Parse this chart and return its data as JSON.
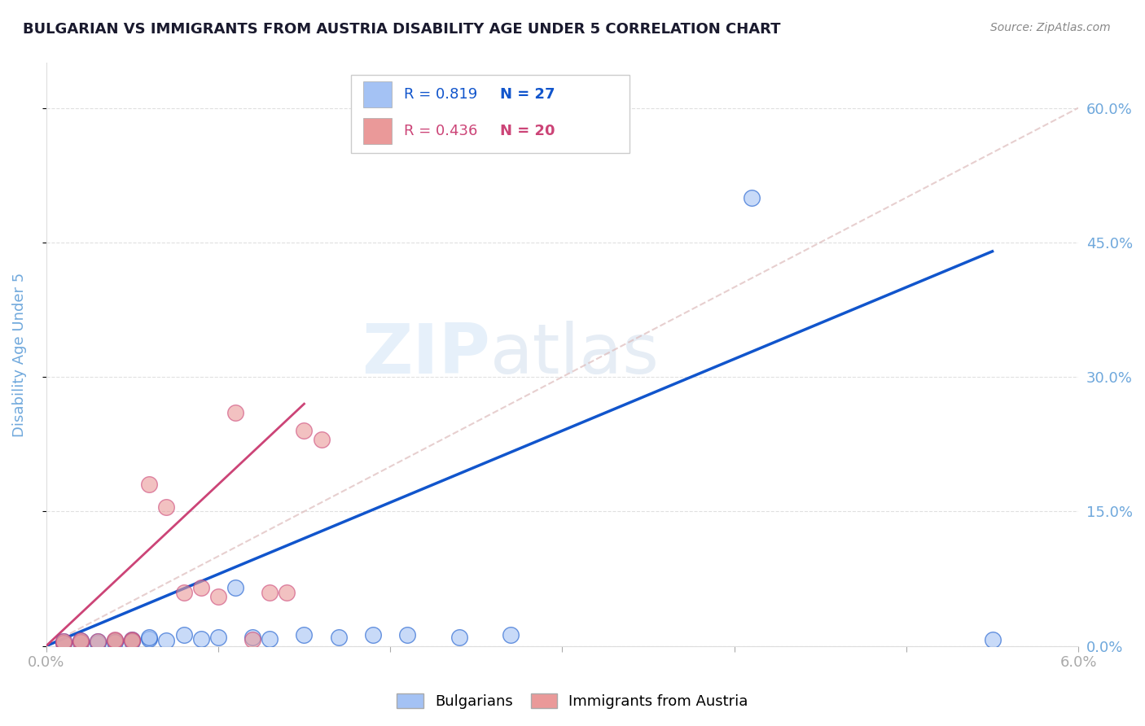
{
  "title": "BULGARIAN VS IMMIGRANTS FROM AUSTRIA DISABILITY AGE UNDER 5 CORRELATION CHART",
  "source": "Source: ZipAtlas.com",
  "ylabel": "Disability Age Under 5",
  "watermark": "ZIPatlas",
  "xlim": [
    0.0,
    0.06
  ],
  "ylim": [
    0.0,
    0.65
  ],
  "xticks": [
    0.0,
    0.01,
    0.02,
    0.03,
    0.04,
    0.05,
    0.06
  ],
  "xtick_labels": [
    "0.0%",
    "",
    "",
    "",
    "",
    "",
    "6.0%"
  ],
  "ytick_labels_right": [
    "0.0%",
    "15.0%",
    "30.0%",
    "45.0%",
    "60.0%"
  ],
  "yticks_right": [
    0.0,
    0.15,
    0.3,
    0.45,
    0.6
  ],
  "legend_r_blue": "0.819",
  "legend_n_blue": "27",
  "legend_r_pink": "0.436",
  "legend_n_pink": "20",
  "blue_color": "#a4c2f4",
  "pink_color": "#ea9999",
  "blue_line_color": "#1155cc",
  "pink_line_color": "#cc4477",
  "axis_color": "#6fa8dc",
  "title_color": "#1a1a2e",
  "grid_color": "#cccccc",
  "blue_scatter_x": [
    0.001,
    0.001,
    0.002,
    0.002,
    0.003,
    0.003,
    0.004,
    0.004,
    0.005,
    0.005,
    0.006,
    0.006,
    0.007,
    0.008,
    0.009,
    0.01,
    0.011,
    0.012,
    0.013,
    0.015,
    0.017,
    0.019,
    0.021,
    0.024,
    0.027,
    0.041,
    0.055
  ],
  "blue_scatter_y": [
    0.003,
    0.005,
    0.004,
    0.006,
    0.003,
    0.005,
    0.006,
    0.004,
    0.007,
    0.005,
    0.008,
    0.01,
    0.006,
    0.012,
    0.008,
    0.01,
    0.065,
    0.01,
    0.008,
    0.012,
    0.01,
    0.012,
    0.012,
    0.01,
    0.012,
    0.5,
    0.007
  ],
  "pink_scatter_x": [
    0.001,
    0.001,
    0.002,
    0.002,
    0.003,
    0.004,
    0.004,
    0.005,
    0.005,
    0.006,
    0.007,
    0.008,
    0.009,
    0.01,
    0.011,
    0.012,
    0.013,
    0.014,
    0.015,
    0.016
  ],
  "pink_scatter_y": [
    0.003,
    0.005,
    0.004,
    0.006,
    0.005,
    0.006,
    0.007,
    0.007,
    0.006,
    0.18,
    0.155,
    0.06,
    0.065,
    0.055,
    0.26,
    0.007,
    0.06,
    0.06,
    0.24,
    0.23
  ],
  "blue_line_x": [
    0.0,
    0.055
  ],
  "blue_line_y": [
    0.0,
    0.44
  ],
  "pink_line_x": [
    0.0,
    0.015
  ],
  "pink_line_y": [
    0.0,
    0.27
  ],
  "diag_line_x": [
    0.0,
    0.06
  ],
  "diag_line_y": [
    0.0,
    0.6
  ]
}
